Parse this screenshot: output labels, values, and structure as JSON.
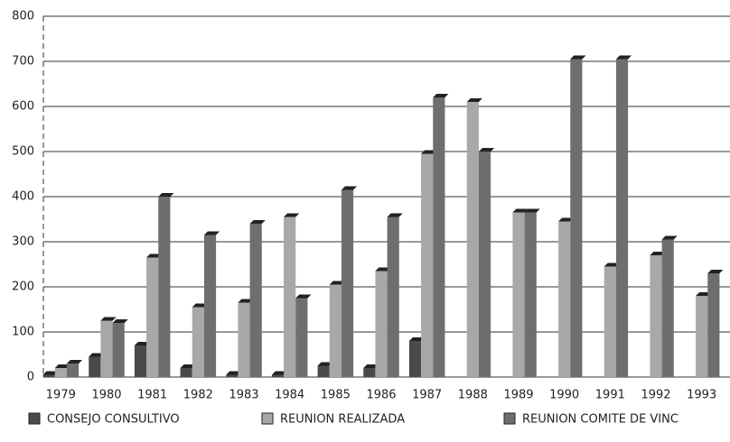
{
  "chart_data": {
    "type": "bar",
    "categories": [
      "1979",
      "1980",
      "1981",
      "1982",
      "1983",
      "1984",
      "1985",
      "1986",
      "1987",
      "1988",
      "1989",
      "1990",
      "1991",
      "1992",
      "1993"
    ],
    "series": [
      {
        "name": "CONSEJO CONSULTIVO",
        "color": "#4a4a4a",
        "values": [
          5,
          45,
          70,
          20,
          5,
          5,
          25,
          20,
          80,
          0,
          0,
          0,
          0,
          0,
          0
        ]
      },
      {
        "name": "REUNION REALIZADA",
        "color": "#a8a8a8",
        "values": [
          20,
          125,
          265,
          155,
          165,
          355,
          205,
          235,
          495,
          610,
          365,
          345,
          245,
          270,
          180
        ]
      },
      {
        "name": "REUNION COMITE DE VINC",
        "color": "#6e6e6e",
        "values": [
          30,
          120,
          400,
          315,
          340,
          175,
          415,
          355,
          620,
          500,
          365,
          705,
          705,
          305,
          230
        ]
      }
    ],
    "ylim": [
      0,
      800
    ],
    "yticks": [
      0,
      100,
      200,
      300,
      400,
      500,
      600,
      700,
      800
    ],
    "grid": true
  }
}
